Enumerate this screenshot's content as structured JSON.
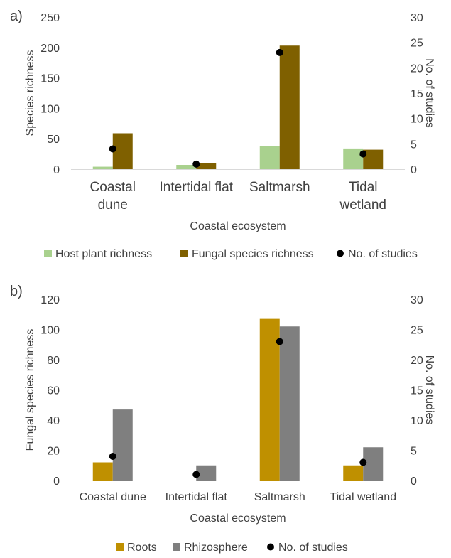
{
  "chart_data": [
    {
      "panel_label": "a)",
      "type": "bar",
      "categories": [
        "Coastal\ndune",
        "Intertidal flat",
        "Saltmarsh",
        "Tidal\nwetland"
      ],
      "xlabel": "Coastal ecosystem",
      "ylabel": "Species richness",
      "ylabel_right": "No. of studies",
      "ylim": [
        0,
        250
      ],
      "yticks": [
        0,
        50,
        100,
        150,
        200,
        250
      ],
      "ylim_right": [
        0,
        30
      ],
      "yticks_right": [
        0,
        5,
        10,
        15,
        20,
        25,
        30
      ],
      "series": [
        {
          "name": "Host plant richness",
          "color": "#a9d18e",
          "values": [
            4,
            7,
            38,
            34
          ]
        },
        {
          "name": "Fungal species richness",
          "color": "#7f6000",
          "values": [
            59,
            10,
            203,
            32
          ]
        }
      ],
      "points": {
        "name": "No. of studies",
        "color": "#000000",
        "axis": "right",
        "values": [
          4,
          1,
          23,
          3
        ]
      },
      "legend_placement": "bottom"
    },
    {
      "panel_label": "b)",
      "type": "bar",
      "categories": [
        "Coastal dune",
        "Intertidal flat",
        "Saltmarsh",
        "Tidal wetland"
      ],
      "xlabel": "Coastal ecosystem",
      "ylabel": "Fungal species richness",
      "ylabel_right": "No. of studies",
      "ylim": [
        0,
        120
      ],
      "yticks": [
        0,
        20,
        40,
        60,
        80,
        100,
        120
      ],
      "ylim_right": [
        0,
        30
      ],
      "yticks_right": [
        0,
        5,
        10,
        15,
        20,
        25,
        30
      ],
      "series": [
        {
          "name": "Roots",
          "color": "#bf9000",
          "values": [
            12,
            0,
            107,
            10
          ]
        },
        {
          "name": "Rhizosphere",
          "color": "#7f7f7f",
          "values": [
            47,
            10,
            102,
            22
          ]
        }
      ],
      "points": {
        "name": "No. of studies",
        "color": "#000000",
        "axis": "right",
        "values": [
          4,
          1,
          23,
          3
        ]
      },
      "legend_placement": "bottom"
    }
  ]
}
